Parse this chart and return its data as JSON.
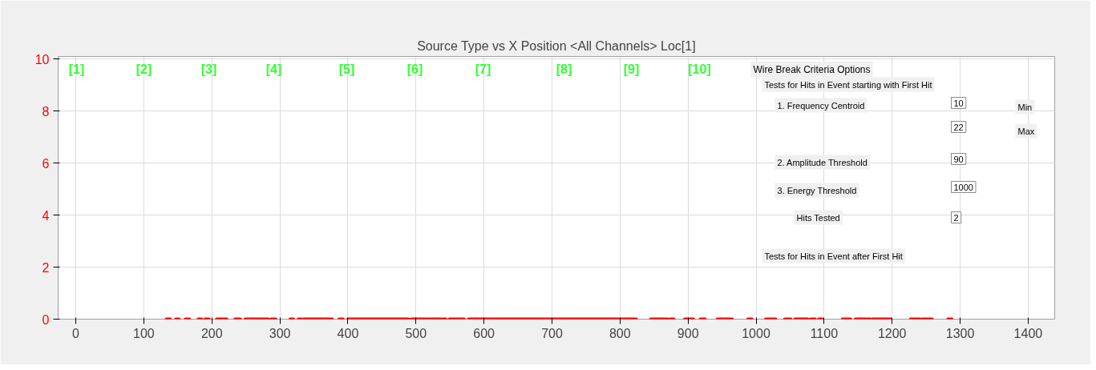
{
  "chart_data": {
    "type": "line",
    "title": "Source Type vs X Position <All Channels> Loc[1]",
    "series": [
      {
        "color": "#ff0000",
        "x": [
          133,
          139,
          null,
          147,
          152,
          null,
          161,
          167,
          null,
          180,
          185,
          null,
          190,
          196,
          null,
          207,
          222,
          null,
          234,
          242,
          null,
          249,
          274,
          null,
          275,
          283,
          null,
          287,
          294,
          null,
          315,
          320,
          null,
          327,
          332,
          null,
          335,
          377,
          null,
          387,
          393,
          null,
          400,
          489,
          null,
          493,
          521,
          null,
          523,
          544,
          null,
          549,
          571,
          null,
          577,
          824,
          null,
          845,
          870,
          null,
          873,
          879,
          null,
          895,
          900,
          null,
          902,
          908,
          null,
          918,
          925,
          null,
          943,
          965,
          null,
          988,
          994,
          null,
          1014,
          1021,
          null,
          1022,
          1029,
          null,
          1042,
          1051,
          null,
          1057,
          1076,
          null,
          1080,
          1087,
          null,
          1092,
          1097,
          null,
          1127,
          1139,
          null,
          1146,
          1168,
          null,
          1171,
          1198,
          null,
          1227,
          1233,
          null,
          1235,
          1241,
          null,
          1244,
          1249,
          null,
          1251,
          1259,
          null,
          1282,
          1288
        ],
        "values": [
          0,
          0,
          null,
          0,
          0,
          null,
          0,
          0,
          null,
          0,
          0,
          null,
          0,
          0,
          null,
          0,
          0,
          null,
          0,
          0,
          null,
          0,
          0,
          null,
          0,
          0,
          null,
          0,
          0,
          null,
          0,
          0,
          null,
          0,
          0,
          null,
          0,
          0,
          null,
          0,
          0,
          null,
          0,
          0,
          null,
          0,
          0,
          null,
          0,
          0,
          null,
          0,
          0,
          null,
          0,
          0,
          null,
          0,
          0,
          null,
          0,
          0,
          null,
          0,
          0,
          null,
          0,
          0,
          null,
          0,
          0,
          null,
          0,
          0,
          null,
          0,
          0,
          null,
          0,
          0,
          null,
          0,
          0,
          null,
          0,
          0,
          null,
          0,
          0,
          null,
          0,
          0,
          null,
          0,
          0,
          null,
          0,
          0,
          null,
          0,
          0,
          null,
          0,
          0,
          null,
          0,
          0,
          null,
          0,
          0,
          null,
          0,
          0,
          null,
          0,
          0,
          null,
          0,
          0
        ]
      }
    ],
    "xlim": [
      -26,
      1439
    ],
    "ylim": [
      0,
      10.1
    ],
    "xticks": [
      0,
      100,
      200,
      300,
      400,
      500,
      600,
      700,
      800,
      900,
      1000,
      1100,
      1200,
      1300,
      1400
    ],
    "yticks": [
      0,
      2,
      4,
      6,
      8,
      10
    ],
    "grid": true,
    "marker": "none",
    "line_style": "solid",
    "annotations": [
      "[1]",
      "[2]",
      "[3]",
      "[4]",
      "[5]",
      "[6]",
      "[7]",
      "[8]",
      "[9]",
      "[10]",
      "Wire Break Criteria Options",
      "Tests for Hits in Event starting with First Hit",
      "1. Frequency Centroid",
      "10",
      "Min",
      "22",
      "Max",
      "2. Amplitude Threshold",
      "90",
      "3. Energy Threshold",
      "1000",
      "Hits Tested",
      "2",
      "Tests for Hits in Event after First Hit"
    ]
  }
}
